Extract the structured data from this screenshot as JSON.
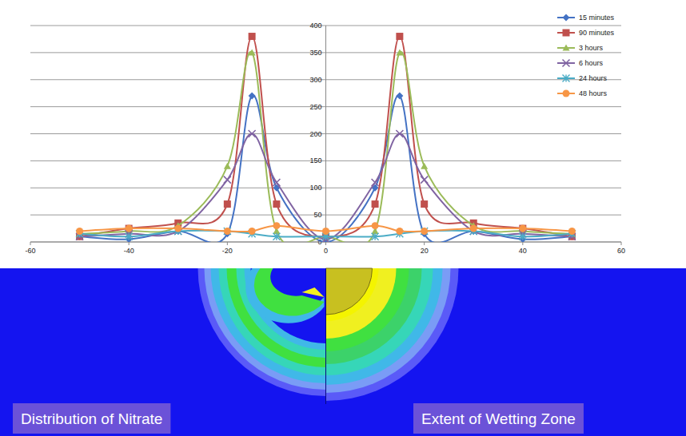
{
  "chart_data": {
    "type": "line",
    "x": [
      -50,
      -40,
      -30,
      -20,
      -15,
      -10,
      0,
      10,
      15,
      20,
      30,
      40,
      50
    ],
    "xlim": [
      -60,
      60
    ],
    "xticks": [
      -60,
      -40,
      -20,
      0,
      20,
      40,
      60
    ],
    "ylim": [
      0,
      400
    ],
    "yticks": [
      0,
      50,
      100,
      150,
      200,
      250,
      300,
      350,
      400
    ],
    "grid": true,
    "legend": "upper right",
    "series": [
      {
        "name": "15 minutes",
        "color": "#4472c4",
        "marker": "diamond",
        "values": [
          10,
          5,
          20,
          15,
          270,
          100,
          0,
          100,
          270,
          15,
          20,
          5,
          10
        ]
      },
      {
        "name": "90 minutes",
        "color": "#c0504d",
        "marker": "square",
        "values": [
          10,
          25,
          35,
          70,
          380,
          70,
          10,
          70,
          380,
          70,
          35,
          25,
          10
        ]
      },
      {
        "name": "3 hours",
        "color": "#9bbb59",
        "marker": "triangle",
        "values": [
          15,
          20,
          30,
          140,
          350,
          20,
          10,
          20,
          350,
          140,
          30,
          20,
          15
        ]
      },
      {
        "name": "6 hours",
        "color": "#8064a2",
        "marker": "x",
        "values": [
          10,
          15,
          20,
          115,
          200,
          110,
          5,
          110,
          200,
          115,
          20,
          15,
          10
        ]
      },
      {
        "name": "24 hours",
        "color": "#4bacc6",
        "marker": "star",
        "values": [
          15,
          10,
          20,
          20,
          15,
          10,
          10,
          10,
          15,
          20,
          20,
          10,
          15
        ]
      },
      {
        "name": "48 hours",
        "color": "#f79646",
        "marker": "circle",
        "values": [
          20,
          25,
          25,
          20,
          20,
          30,
          20,
          30,
          20,
          20,
          25,
          25,
          20
        ]
      }
    ]
  },
  "diagram": {
    "labels": [
      "Distribution of Nitrate",
      "Extent of Wetting Zone"
    ]
  }
}
